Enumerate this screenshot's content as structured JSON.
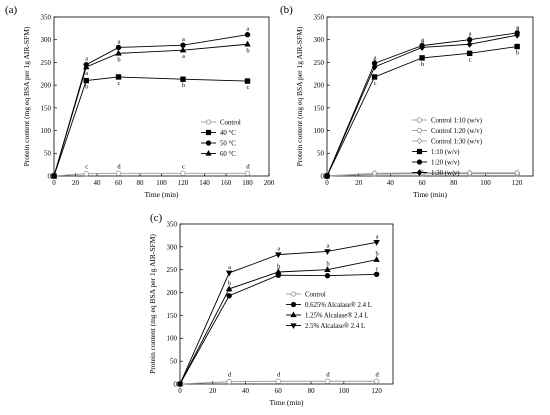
{
  "chart_data": [
    {
      "panel": "(a)",
      "type": "line",
      "xlabel": "Time (min)",
      "ylabel": "Protein content (mg eq BSA per 1g AIR-SFM)",
      "xlim": [
        0,
        200
      ],
      "ylim": [
        0,
        350
      ],
      "xticks": [
        0,
        20,
        40,
        60,
        80,
        100,
        120,
        140,
        160,
        180,
        200
      ],
      "yticks": [
        0,
        50,
        100,
        150,
        200,
        250,
        300,
        350
      ],
      "legend_position": "center-right",
      "series": [
        {
          "name": "Control",
          "marker": "circle-open",
          "color": "#999999",
          "x": [
            0,
            30,
            60,
            120,
            180
          ],
          "y": [
            0,
            5,
            6,
            6,
            6
          ],
          "sig": [
            "",
            "c",
            "d",
            "c",
            "d"
          ]
        },
        {
          "name": "40 °C",
          "marker": "square",
          "color": "#000000",
          "x": [
            0,
            30,
            60,
            120,
            180
          ],
          "y": [
            0,
            210,
            218,
            213,
            209
          ],
          "sig": [
            "",
            "b",
            "c",
            "b",
            "c"
          ]
        },
        {
          "name": "50 °C",
          "marker": "circle",
          "color": "#000000",
          "x": [
            0,
            30,
            60,
            120,
            180
          ],
          "y": [
            0,
            245,
            283,
            288,
            311
          ],
          "sig": [
            "",
            "a",
            "a",
            "a",
            "a"
          ]
        },
        {
          "name": "60 °C",
          "marker": "triangle-up",
          "color": "#000000",
          "x": [
            0,
            30,
            60,
            120,
            180
          ],
          "y": [
            0,
            240,
            270,
            277,
            290
          ],
          "sig": [
            "",
            "a",
            "b",
            "a",
            "b"
          ]
        }
      ]
    },
    {
      "panel": "(b)",
      "type": "line",
      "xlabel": "Time (min)",
      "ylabel": "Protein content (mg eq BSA per 1g AIR-SFM)",
      "xlim": [
        0,
        130
      ],
      "ylim": [
        0,
        350
      ],
      "xticks": [
        0,
        20,
        40,
        60,
        80,
        100,
        120
      ],
      "yticks": [
        0,
        50,
        100,
        150,
        200,
        250,
        300,
        350
      ],
      "legend_position": "center-right",
      "series": [
        {
          "name": "Control 1:10 (w/v)",
          "marker": "circle-open",
          "color": "#999999",
          "x": [
            0,
            30,
            60,
            90,
            120
          ],
          "y": [
            0,
            5,
            6,
            6,
            6
          ],
          "sig": [
            "",
            "",
            "",
            "",
            ""
          ]
        },
        {
          "name": "Control 1:20 (w/v)",
          "marker": "circle-open",
          "color": "#999999",
          "x": [
            0,
            30,
            60,
            90,
            120
          ],
          "y": [
            0,
            4,
            5,
            5,
            5
          ],
          "sig": [
            "",
            "",
            "",
            "",
            ""
          ]
        },
        {
          "name": "Control 1:30 (w/v)",
          "marker": "diamond-open",
          "color": "#999999",
          "x": [
            0,
            30,
            60,
            90,
            120
          ],
          "y": [
            0,
            6,
            7,
            7,
            7
          ],
          "sig": [
            "",
            "",
            "",
            "",
            ""
          ]
        },
        {
          "name": "1:10 (w/v)",
          "marker": "square",
          "color": "#000000",
          "x": [
            0,
            30,
            60,
            90,
            120
          ],
          "y": [
            0,
            218,
            260,
            270,
            285
          ],
          "sig": [
            "",
            "c",
            "b",
            "c",
            "b"
          ]
        },
        {
          "name": "1:20 (w/v)",
          "marker": "circle",
          "color": "#000000",
          "x": [
            0,
            30,
            60,
            90,
            120
          ],
          "y": [
            0,
            248,
            287,
            300,
            315
          ],
          "sig": [
            "",
            "a",
            "a",
            "a",
            "a"
          ]
        },
        {
          "name": "1:30 (w/v)",
          "marker": "diamond",
          "color": "#000000",
          "x": [
            0,
            30,
            60,
            90,
            120
          ],
          "y": [
            0,
            240,
            283,
            290,
            310
          ],
          "sig": [
            "",
            "b",
            "a",
            "b",
            "a"
          ]
        }
      ]
    },
    {
      "panel": "(c)",
      "type": "line",
      "xlabel": "Time (min)",
      "ylabel": "Protein content (mg eq BSA per 1g AIR-SFM)",
      "xlim": [
        0,
        130
      ],
      "ylim": [
        0,
        350
      ],
      "xticks": [
        0,
        20,
        40,
        60,
        80,
        100,
        120
      ],
      "yticks": [
        0,
        50,
        100,
        150,
        200,
        250,
        300,
        350
      ],
      "legend_position": "center-right",
      "series": [
        {
          "name": "Control",
          "marker": "circle-open",
          "color": "#999999",
          "x": [
            0,
            30,
            60,
            90,
            120
          ],
          "y": [
            0,
            5,
            6,
            6,
            6
          ],
          "sig": [
            "",
            "d",
            "d",
            "d",
            "d"
          ]
        },
        {
          "name": "0.625% Alcalase® 2.4 L",
          "marker": "circle",
          "color": "#000000",
          "x": [
            0,
            30,
            60,
            90,
            120
          ],
          "y": [
            0,
            193,
            238,
            237,
            240
          ],
          "sig": [
            "",
            "c",
            "c",
            "c",
            "c"
          ]
        },
        {
          "name": "1.25% Alcalase® 2.4 L",
          "marker": "triangle-up",
          "color": "#000000",
          "x": [
            0,
            30,
            60,
            90,
            120
          ],
          "y": [
            0,
            208,
            245,
            250,
            272
          ],
          "sig": [
            "",
            "b",
            "b",
            "b",
            "b"
          ]
        },
        {
          "name": "2.5% Alcalase® 2.4 L",
          "marker": "triangle-down",
          "color": "#000000",
          "x": [
            0,
            30,
            60,
            90,
            120
          ],
          "y": [
            0,
            243,
            283,
            290,
            310
          ],
          "sig": [
            "",
            "a",
            "a",
            "a",
            "a"
          ]
        }
      ]
    }
  ]
}
